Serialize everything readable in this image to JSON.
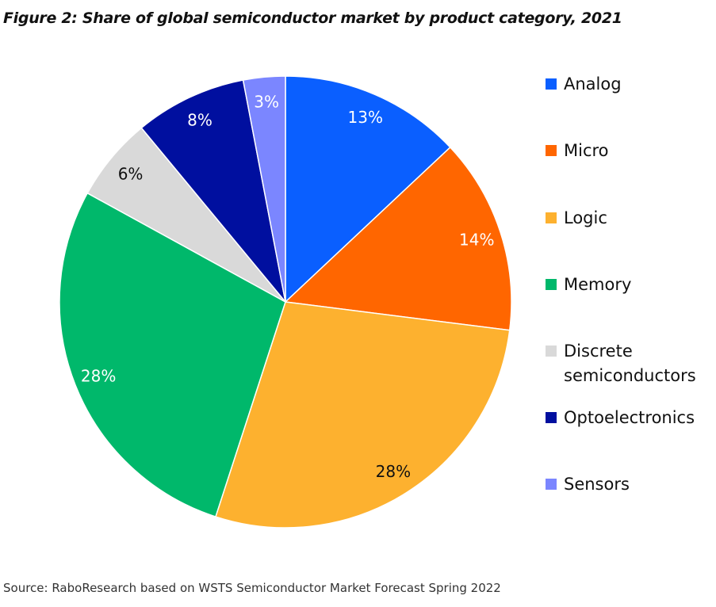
{
  "title": "Figure 2: Share of global semiconductor market by product category, 2021",
  "source": "Source: RaboResearch based on WSTS Semiconductor Market Forecast Spring 2022",
  "chart_data": {
    "type": "pie",
    "title": "Figure 2: Share of global semiconductor market by product category, 2021",
    "legend_position": "right",
    "start_angle": "12 o'clock, clockwise",
    "slices": [
      {
        "name": "Analog",
        "value": 13,
        "label": "13%",
        "color": "#0a5fff",
        "label_color": "#ffffff"
      },
      {
        "name": "Micro",
        "value": 14,
        "label": "14%",
        "color": "#ff6600",
        "label_color": "#ffffff"
      },
      {
        "name": "Logic",
        "value": 28,
        "label": "28%",
        "color": "#fdb12f",
        "label_color": "#111111"
      },
      {
        "name": "Memory",
        "value": 28,
        "label": "28%",
        "color": "#00b86b",
        "label_color": "#ffffff"
      },
      {
        "name": "Discrete semiconductors",
        "value": 6,
        "label": "6%",
        "color": "#d9d9d9",
        "label_color": "#111111"
      },
      {
        "name": "Optoelectronics",
        "value": 8,
        "label": "8%",
        "color": "#000f9f",
        "label_color": "#ffffff"
      },
      {
        "name": "Sensors",
        "value": 3,
        "label": "3%",
        "color": "#7b86ff",
        "label_color": "#ffffff"
      }
    ]
  }
}
